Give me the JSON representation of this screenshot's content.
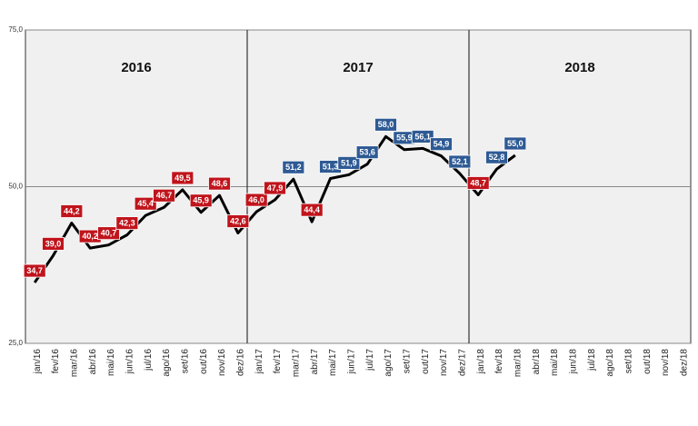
{
  "chart_data": {
    "type": "line",
    "categories": [
      "jan/16",
      "fev/16",
      "mar/16",
      "abr/16",
      "mai/16",
      "jun/16",
      "jul/16",
      "ago/16",
      "set/16",
      "out/16",
      "nov/16",
      "dez/16",
      "jan/17",
      "fev/17",
      "mar/17",
      "abr/17",
      "mai/17",
      "jun/17",
      "jul/17",
      "ago/17",
      "set/17",
      "out/17",
      "nov/17",
      "dez/17",
      "jan/18",
      "fev/18",
      "mar/18",
      "abr/18",
      "mai/18",
      "jun/18",
      "jul/18",
      "ago/18",
      "set/18",
      "out/18",
      "nov/18",
      "dez/18"
    ],
    "values": [
      34.7,
      39.0,
      44.2,
      40.2,
      40.7,
      42.3,
      45.4,
      46.7,
      49.5,
      45.9,
      48.6,
      42.6,
      46.0,
      47.9,
      51.2,
      44.4,
      51.3,
      51.9,
      53.6,
      58.0,
      55.9,
      56.1,
      54.9,
      52.1,
      48.7,
      52.8,
      55.0,
      null,
      null,
      null,
      null,
      null,
      null,
      null,
      null,
      null
    ],
    "value_labels": [
      "34,7",
      "39,0",
      "44,2",
      "40,2",
      "40,7",
      "42,3",
      "45,4",
      "46,7",
      "49,5",
      "45,9",
      "48,6",
      "42,6",
      "46,0",
      "47,9",
      "51,2",
      "44,4",
      "51,3",
      "51,9",
      "53,6",
      "58,0",
      "55,9",
      "56,1",
      "54,9",
      "52,1",
      "48,7",
      "52,8",
      "55,0",
      null,
      null,
      null,
      null,
      null,
      null,
      null,
      null,
      null
    ],
    "color": "#000000",
    "reference_line": 50,
    "above_color": "#2e5a94",
    "below_color": "#c0141c",
    "year_labels": [
      "2016",
      "2017",
      "2018"
    ],
    "ylim": [
      25,
      75
    ],
    "yticks": [
      {
        "value": 25,
        "label": "25,0"
      },
      {
        "value": 50,
        "label": "50,0"
      },
      {
        "value": 75,
        "label": "75,0"
      }
    ],
    "grid": true
  }
}
